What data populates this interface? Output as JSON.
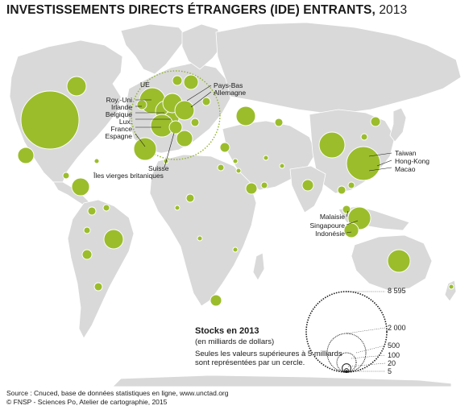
{
  "title": {
    "main": "INVESTISSEMENTS DIRECTS ÉTRANGERS (IDE) ENTRANTS,",
    "year": "2013"
  },
  "colors": {
    "land": "#d9d9d9",
    "bubble": "#9bbd2c",
    "border": "#ffffff",
    "eu_ring": "#8fb32a"
  },
  "labels": {
    "ue": "UE",
    "pays_bas": "Pays-Bas",
    "allemagne": "Allemagne",
    "roy_uni": "Roy.-Uni",
    "irlande": "Irlande",
    "belgique": "Belgique",
    "lux": "Lux.",
    "france": "France",
    "espagne": "Espagne",
    "suisse": "Suisse",
    "iles_vierges": "Îles vierges britaniques",
    "taiwan": "Taiwan",
    "hong_kong": "Hong-Kong",
    "macao": "Macao",
    "malaisie": "Malaisie",
    "singapour": "Singapoure",
    "indonesie": "Indonésie"
  },
  "legend": {
    "title": "Stocks en 2013",
    "subtitle": "(en milliards de dollars)",
    "note": "Seules les valeurs supérieures à 5 milliards sont représentées par un cercle.",
    "values": [
      "8 595",
      "2 000",
      "500",
      "100",
      "20",
      "5"
    ]
  },
  "source": {
    "line1": "Source : Cnuced, base de données statistiques en ligne, www.unctad.org",
    "line2": "© FNSP - Sciences Po, Atelier de cartographie, 2015"
  }
}
